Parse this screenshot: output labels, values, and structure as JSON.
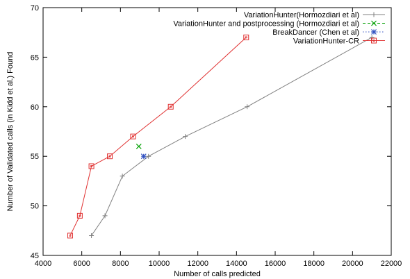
{
  "chart_data": {
    "type": "line",
    "title": "",
    "xlabel": "Number of calls predicted",
    "ylabel": "Number of Validated calls (in Kidd et al.) Found",
    "xlim": [
      4000,
      22000
    ],
    "ylim": [
      45,
      70
    ],
    "xticks": [
      "4000",
      "6000",
      "8000",
      "10000",
      "12000",
      "14000",
      "16000",
      "18000",
      "20000",
      "22000"
    ],
    "yticks": [
      "45",
      "50",
      "55",
      "60",
      "65",
      "70"
    ],
    "grid": false,
    "legend_position": "top-right",
    "series": [
      {
        "name": "VariationHunter(Hormozdiari et al)",
        "color": "#808080",
        "marker": "plus",
        "line": "solid",
        "x": [
          6500,
          7200,
          8100,
          9450,
          11350,
          14550,
          21000
        ],
        "y": [
          47,
          49,
          53,
          55,
          57,
          60,
          67
        ]
      },
      {
        "name": "VariationHunter and postprocessing (Hormozdiari et al)",
        "color": "#00a000",
        "marker": "x",
        "line": "dashed",
        "x": [
          8950
        ],
        "y": [
          56
        ]
      },
      {
        "name": "BreakDancer (Chen et al)",
        "color": "#3050c0",
        "marker": "star",
        "line": "dotted",
        "x": [
          9200
        ],
        "y": [
          55
        ]
      },
      {
        "name": "VariationHunter-CR",
        "color": "#e03030",
        "marker": "square",
        "line": "solid",
        "x": [
          5400,
          5900,
          6500,
          7450,
          8650,
          10600,
          14500
        ],
        "y": [
          47,
          49,
          54,
          55,
          57,
          60,
          67
        ]
      }
    ]
  }
}
